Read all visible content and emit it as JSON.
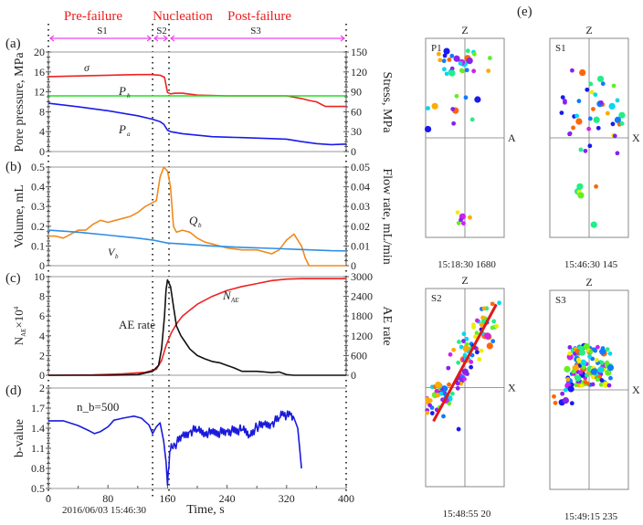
{
  "phases": {
    "labels": [
      "Pre-failure",
      "Nucleation",
      "Post-failure"
    ],
    "stages": [
      "S1",
      "S2",
      "S3"
    ],
    "boundaries_s": [
      0,
      140,
      162,
      400
    ],
    "label_color": "#ee1c1c",
    "arrow_color": "#ee44ee"
  },
  "chart_data": [
    {
      "panel": "(a)",
      "type": "line",
      "x_range": [
        0,
        400
      ],
      "ylabel": "Pore pressure, MPa",
      "ylim": [
        0,
        20
      ],
      "yticks": [
        0,
        4,
        8,
        12,
        16,
        20
      ],
      "y2label": "Stress, MPa",
      "y2lim": [
        0,
        150
      ],
      "y2ticks": [
        0,
        30,
        60,
        90,
        120,
        150
      ],
      "series": [
        {
          "name": "σ",
          "axis": "y2",
          "color": "#ee2222",
          "x": [
            0,
            40,
            80,
            120,
            138,
            150,
            156,
            160,
            164,
            170,
            180,
            200,
            240,
            280,
            320,
            340,
            350,
            360,
            372,
            400
          ],
          "y": [
            113,
            114,
            115,
            116,
            116,
            115,
            112,
            89,
            87,
            88,
            88,
            85,
            84,
            84,
            84,
            80,
            77,
            75,
            68,
            68
          ]
        },
        {
          "name": "P_b",
          "axis": "y",
          "color": "#22dd22",
          "x": [
            0,
            400
          ],
          "y": [
            11.2,
            11.2
          ]
        },
        {
          "name": "P_a",
          "axis": "y",
          "color": "#1a1aee",
          "x": [
            0,
            40,
            80,
            120,
            140,
            150,
            155,
            160,
            164,
            180,
            220,
            260,
            300,
            320,
            340,
            360,
            380,
            400
          ],
          "y": [
            9.7,
            9.0,
            8.2,
            7.2,
            6.5,
            6.0,
            5.5,
            4.3,
            4.0,
            3.6,
            3.0,
            2.8,
            2.6,
            2.5,
            2.0,
            1.6,
            1.4,
            1.5
          ]
        }
      ],
      "annotations": [
        "σ",
        "P_b",
        "P_a"
      ]
    },
    {
      "panel": "(b)",
      "type": "line",
      "x_range": [
        0,
        400
      ],
      "ylabel": "Volume, mL",
      "ylim": [
        0,
        0.5
      ],
      "yticks": [
        0,
        0.1,
        0.2,
        0.3,
        0.4,
        0.5
      ],
      "y2label": "Flow rate, mL/min",
      "y2lim": [
        0,
        0.05
      ],
      "y2ticks": [
        0,
        0.01,
        0.02,
        0.03,
        0.04,
        0.05
      ],
      "series": [
        {
          "name": "Q_b",
          "axis": "y2",
          "color": "#f08a1c",
          "x": [
            0,
            10,
            20,
            30,
            40,
            50,
            60,
            70,
            80,
            90,
            100,
            110,
            120,
            130,
            140,
            145,
            150,
            155,
            160,
            164,
            168,
            172,
            180,
            190,
            200,
            210,
            220,
            240,
            260,
            280,
            300,
            310,
            320,
            330,
            340,
            345,
            350,
            360,
            372,
            400
          ],
          "y": [
            0.015,
            0.015,
            0.014,
            0.016,
            0.018,
            0.018,
            0.021,
            0.023,
            0.022,
            0.023,
            0.024,
            0.025,
            0.027,
            0.03,
            0.032,
            0.033,
            0.045,
            0.05,
            0.048,
            0.04,
            0.02,
            0.017,
            0.018,
            0.017,
            0.014,
            0.012,
            0.011,
            0.009,
            0.008,
            0.008,
            0.006,
            0.008,
            0.013,
            0.016,
            0.01,
            0.004,
            0.0,
            0.0,
            0.0,
            0.0
          ]
        },
        {
          "name": "V_b",
          "axis": "y",
          "color": "#2e8ee6",
          "x": [
            0,
            40,
            80,
            120,
            140,
            160,
            180,
            220,
            260,
            300,
            340,
            380,
            400
          ],
          "y": [
            0.18,
            0.17,
            0.155,
            0.14,
            0.13,
            0.115,
            0.11,
            0.1,
            0.093,
            0.088,
            0.082,
            0.076,
            0.075
          ]
        }
      ],
      "annotations": [
        "Q_b",
        "V_b"
      ]
    },
    {
      "panel": "(c)",
      "type": "line",
      "x_range": [
        0,
        400
      ],
      "ylabel": "N_AE ×10^4",
      "ylim": [
        0,
        10
      ],
      "yticks": [
        0,
        2,
        4,
        6,
        8,
        10
      ],
      "y2label": "AE rate",
      "y2lim": [
        0,
        3000
      ],
      "y2ticks": [
        0,
        600,
        1200,
        1800,
        2400,
        3000
      ],
      "series": [
        {
          "name": "N_AE",
          "axis": "y",
          "color": "#ee2222",
          "x": [
            0,
            60,
            100,
            130,
            145,
            152,
            158,
            165,
            172,
            180,
            190,
            200,
            220,
            240,
            260,
            280,
            300,
            320,
            340,
            360,
            400
          ],
          "y": [
            0,
            0.05,
            0.15,
            0.3,
            0.6,
            1.5,
            3.0,
            4.3,
            5.2,
            6.0,
            6.6,
            7.2,
            8.0,
            8.6,
            9.0,
            9.3,
            9.6,
            9.75,
            9.8,
            9.8,
            9.8
          ]
        },
        {
          "name": "AE rate",
          "axis": "y2",
          "color": "#111111",
          "x": [
            0,
            80,
            120,
            140,
            148,
            152,
            156,
            158,
            160,
            164,
            168,
            172,
            178,
            184,
            190,
            200,
            210,
            220,
            230,
            240,
            250,
            260,
            280,
            300,
            310,
            320,
            330,
            400
          ],
          "y": [
            0,
            0,
            20,
            120,
            300,
            800,
            1800,
            2600,
            2900,
            2700,
            2100,
            1500,
            1200,
            1000,
            800,
            600,
            500,
            420,
            380,
            300,
            220,
            120,
            120,
            80,
            100,
            20,
            0,
            0
          ]
        }
      ],
      "annotations": [
        "AE rate",
        "N_AE"
      ]
    },
    {
      "panel": "(d)",
      "type": "line",
      "x_range": [
        0,
        400
      ],
      "xlabel": "Time, s",
      "xticks": [
        0,
        80,
        160,
        240,
        320,
        400
      ],
      "x_origin_label": "2016/06/03 15:46:30",
      "ylabel": "b-value",
      "ylim": [
        0.5,
        2.0
      ],
      "yticks": [
        0.5,
        0.8,
        1.1,
        1.4,
        1.7,
        2.0
      ],
      "series": [
        {
          "name": "b-value",
          "color": "#1a1add",
          "x": [
            0,
            20,
            40,
            55,
            62,
            70,
            80,
            88,
            100,
            115,
            125,
            135,
            140,
            145,
            150,
            155,
            158,
            160,
            163,
            166,
            170,
            180,
            190,
            200,
            210,
            220,
            240,
            260,
            270,
            280,
            290,
            300,
            310,
            315,
            320,
            325,
            330,
            335,
            340
          ],
          "y": [
            1.51,
            1.51,
            1.44,
            1.36,
            1.32,
            1.35,
            1.42,
            1.52,
            1.55,
            1.58,
            1.55,
            1.45,
            1.32,
            1.42,
            1.48,
            1.2,
            0.9,
            0.55,
            1.05,
            1.12,
            1.15,
            1.28,
            1.35,
            1.38,
            1.34,
            1.32,
            1.35,
            1.38,
            1.3,
            1.42,
            1.45,
            1.47,
            1.55,
            1.65,
            1.58,
            1.6,
            1.55,
            1.4,
            0.8
          ]
        }
      ],
      "annotations": [
        "n_b=500"
      ]
    }
  ],
  "projection_panels": {
    "label": "(e)",
    "panels": [
      {
        "id": "P1",
        "top_axis": "Z",
        "right_axis": "A",
        "time": "15:18:30",
        "count": "1680"
      },
      {
        "id": "S1",
        "top_axis": "Z",
        "right_axis": "X",
        "time": "15:46:30",
        "count": "145"
      },
      {
        "id": "S2",
        "top_axis": "Z",
        "right_axis": "X",
        "time": "15:48:55",
        "count": "20"
      },
      {
        "id": "S3",
        "top_axis": "Z",
        "right_axis": "X",
        "time": "15:49:15",
        "count": "235"
      }
    ]
  },
  "panel_labels": [
    "(a)",
    "(b)",
    "(c)",
    "(d)",
    "(e)"
  ]
}
